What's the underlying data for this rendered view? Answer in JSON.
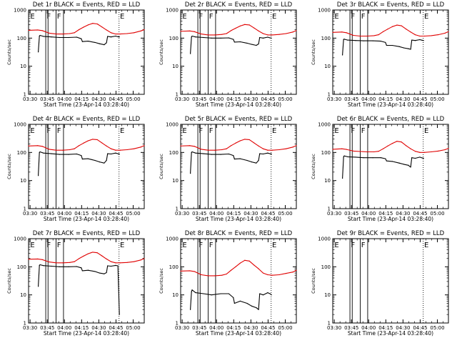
{
  "panel_titles": [
    "Det 1r BLACK = Events, RED = LLD",
    "Det 2r BLACK = Events, RED = LLD",
    "Det 3r BLACK = Events, RED = LLD",
    "Det 4r BLACK = Events, RED = LLD",
    "Det 5r BLACK = Events, RED = LLD",
    "Det 6r BLACK = Events, RED = LLD",
    "Det 7r BLACK = Events, RED = LLD",
    "Det 8r BLACK = Events, RED = LLD",
    "Det 9r BLACK = Events, RED = LLD"
  ],
  "xlabel": "Start Time (23-Apr-14 03:28:40)",
  "ylabel": "Counts/sec",
  "x_ticks": [
    "03:30",
    "03:45",
    "04:00",
    "04:15",
    "04:30",
    "04:45",
    "05:00"
  ],
  "y_ticks": [
    "1",
    "10",
    "100",
    "1000"
  ],
  "colors": {
    "events": "#000000",
    "lld": "#e00000",
    "axes": "#000000",
    "background": "#ffffff"
  },
  "chart_data": {
    "type": "line",
    "layout": "3x3 grid",
    "x_unit": "minutes since 03:28:40",
    "xlim": [
      0,
      101
    ],
    "ylim": [
      1,
      1000
    ],
    "yscale": "log",
    "x_tick_values": [
      1.33,
      16.33,
      31.33,
      46.33,
      61.33,
      76.33,
      91.33
    ],
    "vlines": {
      "solid": [
        15.0,
        17.0,
        24.0,
        30.5
      ],
      "dotted": [
        79.0
      ],
      "labels": [
        {
          "text": "E",
          "x": 1.5
        },
        {
          "text": "F",
          "x": 15.8
        },
        {
          "text": "F",
          "x": 24.8
        },
        {
          "text": "E",
          "x": 79.8
        }
      ]
    },
    "panels": [
      {
        "title": "Det 1r BLACK = Events, RED = LLD",
        "series": [
          {
            "name": "Events",
            "x": [
              8.5,
              9.5,
              10,
              13,
              20,
              27,
              35,
              42,
              46,
              47,
              52,
              58,
              62,
              66,
              68,
              69,
              72,
              76,
              78,
              79.3
            ],
            "y": [
              32,
              118,
              125,
              115,
              110,
              105,
              105,
              108,
              95,
              75,
              78,
              70,
              63,
              58,
              68,
              115,
              110,
              118,
              112,
              110
            ]
          },
          {
            "name": "LLD",
            "x": [
              0,
              8,
              12,
              18,
              24,
              30,
              36,
              40,
              44,
              48,
              52,
              56,
              60,
              64,
              68,
              72,
              76,
              80,
              86,
              92,
              98,
              101
            ],
            "y": [
              190,
              195,
              185,
              150,
              140,
              140,
              145,
              155,
              200,
              245,
              295,
              335,
              320,
              250,
              195,
              155,
              140,
              140,
              145,
              155,
              180,
              200
            ]
          }
        ]
      },
      {
        "title": "Det 2r BLACK = Events, RED = LLD",
        "series": [
          {
            "name": "Events",
            "x": [
              8.5,
              9.5,
              10,
              13,
              20,
              27,
              35,
              42,
              46,
              47,
              52,
              58,
              62,
              66,
              68,
              69,
              72,
              76,
              78,
              79.3
            ],
            "y": [
              28,
              110,
              118,
              110,
              105,
              100,
              100,
              102,
              90,
              72,
              74,
              66,
              60,
              55,
              62,
              105,
              100,
              108,
              102,
              100
            ]
          },
          {
            "name": "LLD",
            "x": [
              0,
              8,
              12,
              18,
              24,
              30,
              36,
              40,
              44,
              48,
              52,
              56,
              60,
              64,
              68,
              72,
              76,
              80,
              86,
              92,
              98,
              101
            ],
            "y": [
              175,
              180,
              170,
              140,
              130,
              130,
              135,
              145,
              185,
              225,
              270,
              305,
              295,
              230,
              180,
              145,
              130,
              130,
              135,
              145,
              165,
              185
            ]
          }
        ]
      },
      {
        "title": "Det 3r BLACK = Events, RED = LLD",
        "series": [
          {
            "name": "Events",
            "x": [
              8.5,
              9.5,
              10,
              13,
              20,
              27,
              35,
              42,
              46,
              47,
              52,
              58,
              62,
              66,
              68,
              69,
              72,
              76,
              78,
              79.3
            ],
            "y": [
              25,
              90,
              92,
              85,
              82,
              80,
              80,
              78,
              70,
              55,
              55,
              50,
              45,
              42,
              40,
              85,
              82,
              88,
              84,
              82
            ]
          },
          {
            "name": "LLD",
            "x": [
              0,
              8,
              12,
              18,
              24,
              30,
              36,
              40,
              44,
              48,
              52,
              56,
              60,
              64,
              68,
              72,
              76,
              80,
              86,
              92,
              98,
              101
            ],
            "y": [
              160,
              165,
              155,
              125,
              118,
              118,
              122,
              132,
              170,
              210,
              255,
              290,
              275,
              210,
              165,
              132,
              118,
              118,
              122,
              132,
              150,
              170
            ]
          }
        ]
      },
      {
        "title": "Det 4r BLACK = Events, RED = LLD",
        "series": [
          {
            "name": "Events",
            "x": [
              8.5,
              9.5,
              10,
              13,
              20,
              27,
              35,
              42,
              46,
              47,
              52,
              58,
              62,
              66,
              68,
              69,
              72,
              76,
              78,
              79.3
            ],
            "y": [
              15,
              100,
              105,
              95,
              90,
              85,
              85,
              88,
              78,
              58,
              60,
              52,
              46,
              42,
              52,
              90,
              88,
              95,
              90,
              88
            ]
          },
          {
            "name": "LLD",
            "x": [
              0,
              8,
              12,
              18,
              24,
              30,
              36,
              40,
              44,
              48,
              52,
              56,
              60,
              64,
              68,
              72,
              76,
              80,
              86,
              92,
              98,
              101
            ],
            "y": [
              170,
              175,
              165,
              130,
              120,
              120,
              125,
              135,
              175,
              215,
              260,
              295,
              285,
              220,
              170,
              135,
              120,
              120,
              125,
              135,
              155,
              175
            ]
          }
        ]
      },
      {
        "title": "Det 5r BLACK = Events, RED = LLD",
        "series": [
          {
            "name": "Events",
            "x": [
              8.5,
              9.5,
              10,
              13,
              20,
              27,
              35,
              42,
              46,
              47,
              52,
              58,
              62,
              66,
              68,
              69,
              72,
              76,
              78,
              79.3
            ],
            "y": [
              18,
              100,
              105,
              95,
              90,
              85,
              85,
              88,
              78,
              58,
              60,
              52,
              46,
              42,
              52,
              90,
              88,
              95,
              90,
              88
            ]
          },
          {
            "name": "LLD",
            "x": [
              0,
              8,
              12,
              18,
              24,
              30,
              36,
              40,
              44,
              48,
              52,
              56,
              60,
              64,
              68,
              72,
              76,
              80,
              86,
              92,
              98,
              101
            ],
            "y": [
              170,
              175,
              165,
              130,
              120,
              120,
              125,
              135,
              175,
              215,
              260,
              295,
              285,
              220,
              170,
              135,
              120,
              120,
              125,
              135,
              155,
              175
            ]
          }
        ]
      },
      {
        "title": "Det 6r BLACK = Events, RED = LLD",
        "series": [
          {
            "name": "Events",
            "x": [
              8.5,
              9.5,
              10,
              13,
              20,
              27,
              35,
              42,
              46,
              47,
              52,
              58,
              62,
              66,
              68,
              69,
              72,
              76,
              78,
              79.3
            ],
            "y": [
              12,
              70,
              75,
              70,
              68,
              65,
              65,
              65,
              60,
              50,
              48,
              42,
              38,
              35,
              30,
              65,
              62,
              68,
              64,
              62
            ]
          },
          {
            "name": "LLD",
            "x": [
              0,
              8,
              12,
              18,
              24,
              30,
              36,
              40,
              44,
              48,
              52,
              56,
              60,
              64,
              68,
              72,
              76,
              80,
              86,
              92,
              98,
              101
            ],
            "y": [
              130,
              135,
              128,
              112,
              108,
              105,
              105,
              110,
              135,
              170,
              210,
              250,
              235,
              175,
              135,
              110,
              100,
              100,
              105,
              112,
              125,
              140
            ]
          }
        ]
      },
      {
        "title": "Det 7r BLACK = Events, RED = LLD",
        "series": [
          {
            "name": "Events",
            "x": [
              8.5,
              9.5,
              10,
              13,
              20,
              27,
              35,
              42,
              46,
              47,
              52,
              58,
              62,
              66,
              68,
              69,
              72,
              76,
              78,
              79.3
            ],
            "y": [
              20,
              112,
              118,
              110,
              105,
              100,
              100,
              102,
              92,
              72,
              75,
              68,
              60,
              56,
              62,
              108,
              105,
              112,
              108,
              2
            ]
          },
          {
            "name": "LLD",
            "x": [
              0,
              8,
              12,
              18,
              24,
              30,
              36,
              40,
              44,
              48,
              52,
              56,
              60,
              64,
              68,
              72,
              76,
              80,
              86,
              92,
              98,
              101
            ],
            "y": [
              185,
              190,
              180,
              148,
              138,
              138,
              142,
              152,
              195,
              240,
              290,
              330,
              315,
              245,
              190,
              152,
              138,
              138,
              142,
              152,
              175,
              195
            ]
          }
        ]
      },
      {
        "title": "Det 8r BLACK = Events, RED = LLD",
        "series": [
          {
            "name": "Events",
            "x": [
              8.5,
              9.5,
              10,
              13,
              20,
              27,
              35,
              42,
              46,
              47,
              52,
              58,
              62,
              66,
              68,
              69,
              72,
              76,
              78,
              79.3
            ],
            "y": [
              3,
              13,
              15,
              12,
              11,
              10,
              11,
              11,
              8,
              5,
              6,
              5,
              4,
              3.5,
              3,
              11,
              10,
              12,
              11,
              10
            ]
          },
          {
            "name": "LLD",
            "x": [
              0,
              8,
              12,
              18,
              24,
              30,
              36,
              40,
              44,
              48,
              52,
              56,
              60,
              64,
              68,
              72,
              76,
              80,
              86,
              92,
              98,
              101
            ],
            "y": [
              70,
              72,
              68,
              52,
              48,
              48,
              50,
              55,
              75,
              100,
              135,
              170,
              160,
              115,
              85,
              60,
              52,
              50,
              52,
              58,
              65,
              75
            ]
          }
        ]
      },
      {
        "title": "Det 9r BLACK = Events, RED = LLD",
        "series": []
      }
    ]
  }
}
